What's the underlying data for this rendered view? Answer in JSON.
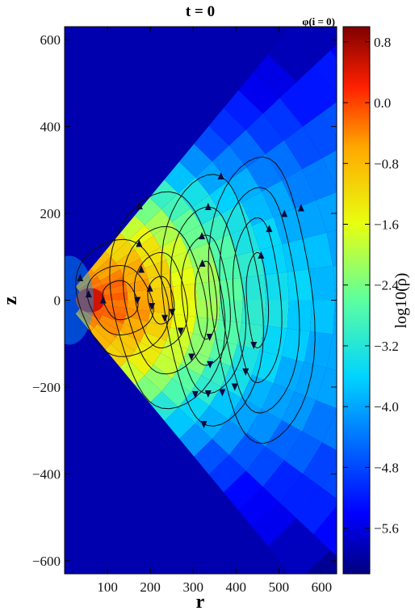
{
  "chart_data": {
    "type": "heatmap",
    "title": "t = 0",
    "corner_label": "φ(i = 0)",
    "xlabel": "r",
    "ylabel": "z",
    "xlim": [
      0,
      635
    ],
    "ylim": [
      -630,
      630
    ],
    "x_ticks": [
      100,
      200,
      300,
      400,
      500,
      600
    ],
    "y_ticks": [
      600,
      400,
      200,
      0,
      -200,
      -400,
      -600
    ],
    "y_tick_labels": [
      "600",
      "400",
      "200",
      "0",
      "−200",
      "−400",
      "−600"
    ],
    "colorbar": {
      "label": "log10(ρ)",
      "range": [
        -6.2,
        1.0
      ],
      "ticks": [
        0.8,
        0.0,
        -0.8,
        -1.6,
        -2.4,
        -3.2,
        -4.0,
        -4.8,
        -5.6
      ],
      "tick_labels": [
        "0.8",
        "0.0",
        "−0.8",
        "−1.6",
        "−2.4",
        "−3.2",
        "−4.0",
        "−4.8",
        "−5.6"
      ]
    },
    "density_model": {
      "background": -5.9,
      "disk_peak": -0.1,
      "disk_peak_radius": 70,
      "outer_value": -4.0,
      "cone_half_angle_deg": 50
    },
    "streamline_loops": [
      {
        "r": 130,
        "z": 0,
        "w": 40,
        "h": 45
      },
      {
        "r": 130,
        "z": 0,
        "w": 75,
        "h": 80
      },
      {
        "r": 135,
        "z": 5,
        "w": 105,
        "h": 135
      },
      {
        "r": 225,
        "z": 0,
        "w": 30,
        "h": 55
      },
      {
        "r": 225,
        "z": 0,
        "w": 60,
        "h": 110
      },
      {
        "r": 235,
        "z": 0,
        "w": 95,
        "h": 170
      },
      {
        "r": 240,
        "z": 0,
        "w": 130,
        "h": 250
      },
      {
        "r": 330,
        "z": 0,
        "w": 25,
        "h": 90
      },
      {
        "r": 330,
        "z": 0,
        "w": 55,
        "h": 150
      },
      {
        "r": 335,
        "z": 0,
        "w": 85,
        "h": 215
      },
      {
        "r": 345,
        "z": 0,
        "w": 115,
        "h": 290
      },
      {
        "r": 450,
        "z": 0,
        "w": 25,
        "h": 110
      },
      {
        "r": 450,
        "z": 0,
        "w": 55,
        "h": 190
      },
      {
        "r": 455,
        "z": 0,
        "w": 90,
        "h": 260
      },
      {
        "r": 460,
        "z": 0,
        "w": 120,
        "h": 330
      }
    ]
  }
}
